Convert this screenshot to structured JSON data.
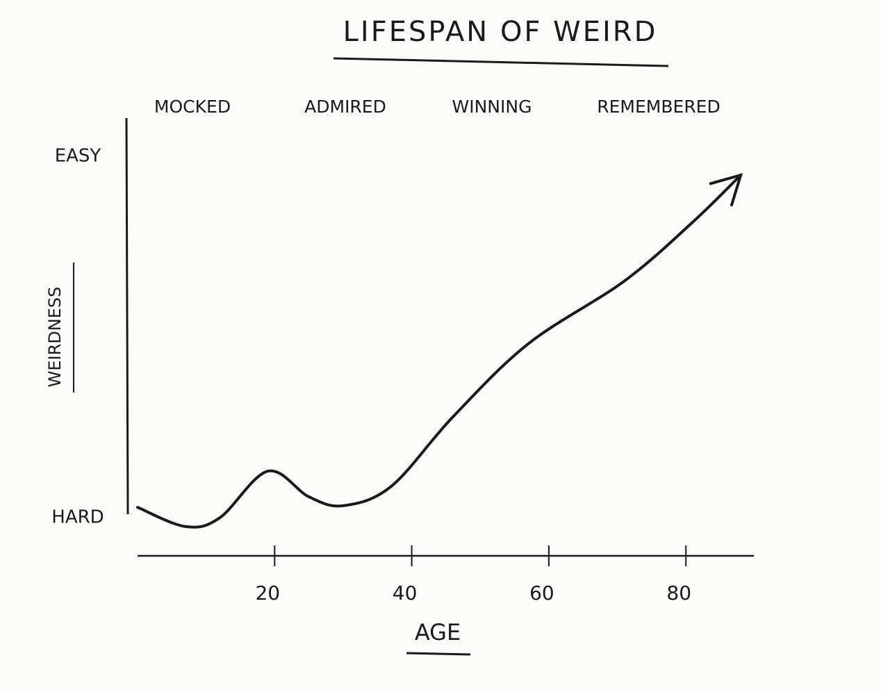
{
  "chart_data": {
    "type": "line",
    "title": "LIFESPAN OF WEIRD",
    "x_label": "AGE",
    "y_label": "WEIRDNESS",
    "annotations": [
      "MOCKED",
      "ADMIRED",
      "WINNING",
      "REMEMBERED"
    ],
    "x": [
      0,
      7,
      12,
      19,
      25,
      30,
      37,
      46,
      57,
      71,
      81,
      88
    ],
    "values": [
      1.26,
      0.78,
      1.0,
      2.16,
      1.52,
      1.3,
      1.78,
      3.51,
      5.33,
      6.89,
      8.36,
      9.53
    ],
    "color": "#1a1a1a",
    "xlim": [
      0,
      89
    ],
    "xticks": [
      20,
      40,
      60,
      80
    ],
    "ylim": [
      0,
      11
    ],
    "yticks": [
      {
        "value": 1,
        "label": "HARD"
      },
      {
        "value": 10,
        "label": "EASY"
      }
    ],
    "grid": false
  }
}
